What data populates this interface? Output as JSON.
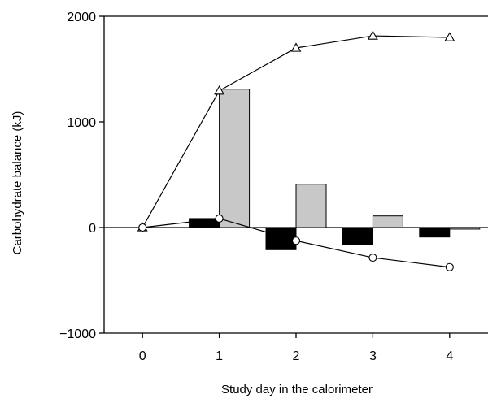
{
  "chart_data": {
    "type": "bar",
    "xlabel": "Study day in the calorimeter",
    "ylabel": "Carbohydrate balance (kJ)",
    "xlim": [
      -0.5,
      4.5
    ],
    "ylim": [
      -1000,
      2000
    ],
    "x_ticks": [
      0,
      1,
      2,
      3,
      4
    ],
    "y_ticks": [
      -1000,
      0,
      1000,
      2000
    ],
    "x_tick_labels": [
      "0",
      "1",
      "2",
      "3",
      "4"
    ],
    "y_tick_labels": [
      "−1000",
      "0",
      "1000",
      "2000"
    ],
    "bar_series": [
      {
        "color": "#000000",
        "x": [
          1,
          2,
          3,
          4
        ],
        "values": [
          85,
          -210,
          -165,
          -90
        ]
      },
      {
        "color": "#c8c8c8",
        "x": [
          1,
          2,
          3,
          4
        ],
        "values": [
          1310,
          410,
          110,
          -15
        ]
      }
    ],
    "line_series": [
      {
        "marker": "triangle-open",
        "x": [
          0,
          1,
          2,
          3,
          4
        ],
        "values": [
          0,
          1295,
          1700,
          1815,
          1800
        ]
      },
      {
        "marker": "circle-open",
        "x": [
          0,
          1,
          2,
          3,
          4
        ],
        "values": [
          0,
          85,
          -125,
          -285,
          -375
        ]
      }
    ],
    "zero_line": true,
    "grid": false,
    "legend": "none"
  }
}
